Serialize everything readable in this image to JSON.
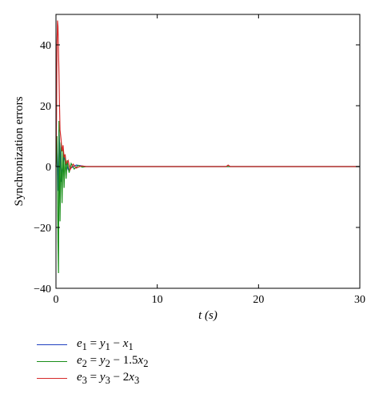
{
  "chart_data": {
    "type": "line",
    "title": "",
    "xlabel": "t (s)",
    "ylabel": "Synchronization errors",
    "xlim": [
      0,
      30
    ],
    "ylim": [
      -40,
      50
    ],
    "xticks": [
      "0",
      "10",
      "20",
      "30"
    ],
    "yticks": [
      "−40",
      "−20",
      "0",
      "20",
      "40"
    ],
    "grid": false,
    "legend_position": "bottom-left, below plot",
    "series": [
      {
        "name": "e1 = y1 − x1",
        "label_parts": {
          "lhs": "e",
          "lhs_sub": "1",
          "rhs": [
            [
              "y",
              "1"
            ],
            [
              "x",
              "1"
            ]
          ],
          "op": " − ",
          "coef": ""
        },
        "color": "#1f3fbf",
        "x": [
          0,
          0.1,
          0.2,
          0.3,
          0.5,
          0.8,
          1.2,
          2,
          3,
          17,
          30
        ],
        "y": [
          0,
          6,
          -8,
          12,
          -5,
          3,
          -1,
          0.5,
          0,
          0,
          0
        ]
      },
      {
        "name": "e2 = y2 − 1.5x2",
        "label_parts": {
          "lhs": "e",
          "lhs_sub": "2",
          "rhs": [
            [
              "y",
              "2"
            ],
            [
              "x",
              "2"
            ]
          ],
          "op": " − ",
          "coef": "1.5"
        },
        "color": "#1a8f1a",
        "x": [
          0,
          0.1,
          0.2,
          0.25,
          0.3,
          0.4,
          0.5,
          0.6,
          0.7,
          0.8,
          0.9,
          1.0,
          1.1,
          1.3,
          1.5,
          1.8,
          2.2,
          2.6,
          3,
          17,
          30
        ],
        "y": [
          0,
          10,
          -25,
          -35,
          15,
          -18,
          8,
          -12,
          6,
          -7,
          4,
          -4,
          2,
          -2,
          1,
          -0.8,
          0.4,
          -0.2,
          0,
          0,
          0
        ]
      },
      {
        "name": "e3 = y3 − 2x3",
        "label_parts": {
          "lhs": "e",
          "lhs_sub": "3",
          "rhs": [
            [
              "y",
              "3"
            ],
            [
              "x",
              "3"
            ]
          ],
          "op": " − ",
          "coef": "2"
        },
        "color": "#d62a2a",
        "x": [
          0,
          0.05,
          0.1,
          0.15,
          0.2,
          0.25,
          0.3,
          0.35,
          0.4,
          0.5,
          0.6,
          0.7,
          0.8,
          0.9,
          1.0,
          1.2,
          1.4,
          1.7,
          2.0,
          2.5,
          3,
          16.8,
          17.0,
          17.2,
          30
        ],
        "y": [
          0,
          15,
          40,
          48,
          46,
          38,
          30,
          20,
          12,
          9,
          5,
          7,
          3,
          4,
          1,
          2,
          -1,
          0.8,
          -0.5,
          0.2,
          0,
          0,
          0.5,
          0,
          0
        ]
      }
    ]
  }
}
